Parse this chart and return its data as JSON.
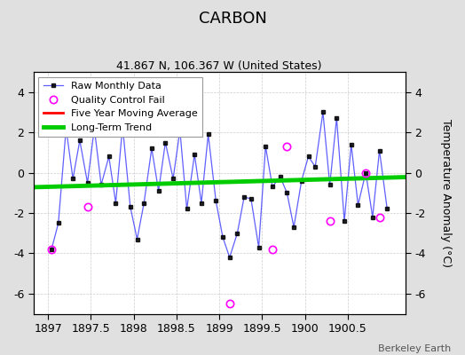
{
  "title": "CARBON",
  "subtitle": "41.867 N, 106.367 W (United States)",
  "ylabel": "Temperature Anomaly (°C)",
  "credit": "Berkeley Earth",
  "xlim": [
    1896.83,
    1901.17
  ],
  "ylim": [
    -7.0,
    5.0
  ],
  "xticks": [
    1897,
    1897.5,
    1898,
    1898.5,
    1899,
    1899.5,
    1900,
    1900.5
  ],
  "yticks": [
    -6,
    -4,
    -2,
    0,
    2,
    4
  ],
  "background_color": "#e0e0e0",
  "plot_bg_color": "#ffffff",
  "raw_x": [
    1897.04,
    1897.12,
    1897.21,
    1897.29,
    1897.37,
    1897.46,
    1897.54,
    1897.62,
    1897.71,
    1897.79,
    1897.87,
    1897.96,
    1898.04,
    1898.12,
    1898.21,
    1898.29,
    1898.37,
    1898.46,
    1898.54,
    1898.62,
    1898.71,
    1898.79,
    1898.87,
    1898.96,
    1899.04,
    1899.12,
    1899.21,
    1899.29,
    1899.37,
    1899.46,
    1899.54,
    1899.62,
    1899.71,
    1899.79,
    1899.87,
    1899.96,
    1900.04,
    1900.12,
    1900.21,
    1900.29,
    1900.37,
    1900.46,
    1900.54,
    1900.62,
    1900.71,
    1900.79,
    1900.87,
    1900.96
  ],
  "raw_y": [
    -3.8,
    -2.5,
    2.2,
    -0.3,
    1.6,
    -0.5,
    2.2,
    -0.6,
    0.8,
    -1.5,
    2.3,
    -1.7,
    -3.3,
    -1.5,
    1.2,
    -0.9,
    1.5,
    -0.3,
    2.1,
    -1.8,
    0.9,
    -1.5,
    1.9,
    -1.4,
    -3.2,
    -4.2,
    -3.0,
    -1.2,
    -1.3,
    -3.7,
    1.3,
    -0.7,
    -0.2,
    -1.0,
    -2.7,
    -0.4,
    0.8,
    0.3,
    3.0,
    -0.6,
    2.7,
    -2.4,
    1.4,
    -1.6,
    0.0,
    -2.2,
    1.1,
    -1.8
  ],
  "qc_x": [
    1897.04,
    1897.46,
    1899.12,
    1899.62,
    1899.79,
    1900.29,
    1900.71,
    1900.87
  ],
  "qc_y": [
    -3.8,
    -1.7,
    -6.5,
    -3.8,
    1.3,
    -2.4,
    -0.0,
    -2.2
  ],
  "trend_x": [
    1896.83,
    1901.17
  ],
  "trend_y": [
    -0.72,
    -0.22
  ],
  "raw_line_color": "#4444ff",
  "raw_marker_color": "black",
  "qc_marker_color": "magenta",
  "trend_color": "#00cc00",
  "mavg_color": "red",
  "grid_color": "#cccccc"
}
